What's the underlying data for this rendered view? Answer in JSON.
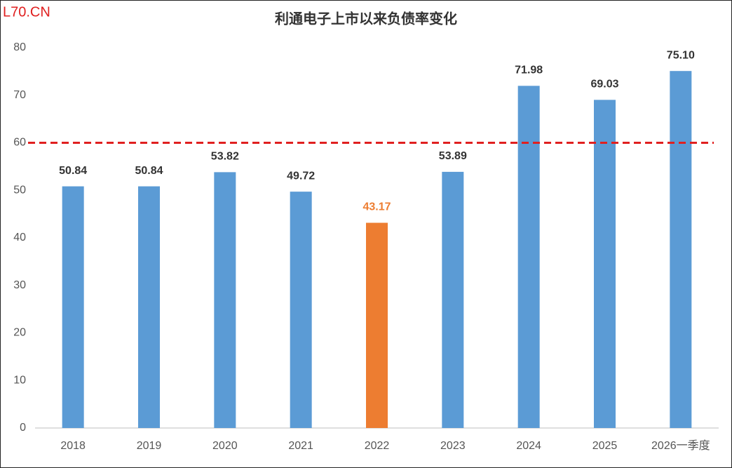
{
  "chart_data": {
    "type": "bar",
    "watermark": "L70.CN",
    "title": "利通电子上市以来负债率变化",
    "categories": [
      "2018",
      "2019",
      "2020",
      "2021",
      "2022",
      "2023",
      "2024",
      "2025",
      "2026一季度"
    ],
    "values": [
      50.84,
      50.84,
      53.82,
      49.72,
      43.17,
      53.89,
      71.98,
      69.03,
      75.1
    ],
    "value_labels": [
      "50.84",
      "50.84",
      "53.82",
      "49.72",
      "43.17",
      "53.89",
      "71.98",
      "69.03",
      "75.10"
    ],
    "colors": [
      "#5b9bd5",
      "#5b9bd5",
      "#5b9bd5",
      "#5b9bd5",
      "#ed7d31",
      "#5b9bd5",
      "#5b9bd5",
      "#5b9bd5",
      "#5b9bd5"
    ],
    "label_colors": [
      "#333333",
      "#333333",
      "#333333",
      "#333333",
      "#ed7d31",
      "#333333",
      "#333333",
      "#333333",
      "#333333"
    ],
    "ylim": [
      0,
      80
    ],
    "yticks": [
      0,
      10,
      20,
      30,
      40,
      50,
      60,
      70,
      80
    ],
    "grid": false,
    "reference_line": {
      "value": 60,
      "color": "#e02020"
    }
  }
}
